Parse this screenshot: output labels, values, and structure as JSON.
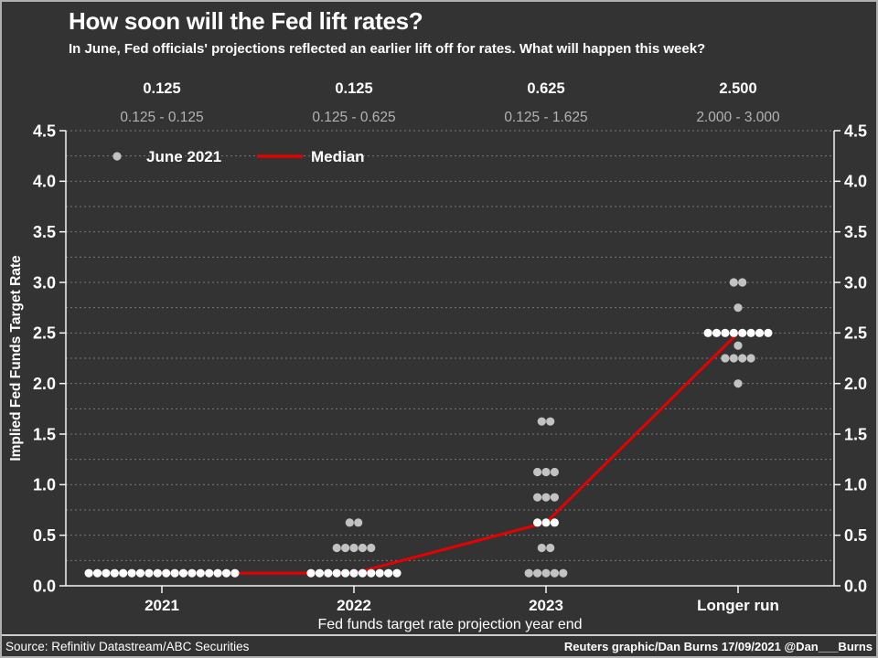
{
  "header": {
    "title": "How soon will the Fed lift rates?",
    "subtitle": "In June, Fed officials' projections reflected an earlier lift off for rates. What will happen this week?"
  },
  "footer": {
    "source": "Source: Refinitiv Datastream/ABC Securities",
    "credit": "Reuters graphic/Dan Burns 17/09/2021 @Dan___Burns"
  },
  "colors": {
    "background": "#333333",
    "border": "#b0b0b0",
    "text": "#ffffff",
    "muted_text": "#b3b3b3",
    "grid": "#8f8f8f",
    "axis": "#f5f5f5",
    "dot": "#c2c2c2",
    "dot_median": "#ffffff",
    "median_line": "#e80000"
  },
  "chart_data": {
    "type": "scatter",
    "title": "How soon will the Fed lift rates?",
    "xlabel": "Fed funds target rate projection year end",
    "ylabel": "Implied Fed Funds Target Rate",
    "ylim": [
      0,
      4.5
    ],
    "ytick_step": 0.5,
    "grid_step": 0.25,
    "grid": true,
    "categories": [
      "2021",
      "2022",
      "2023",
      "Longer run"
    ],
    "legend": [
      {
        "marker": "dot",
        "label": "June 2021"
      },
      {
        "marker": "line",
        "label": "Median"
      }
    ],
    "series": [
      {
        "name": "June 2021",
        "type": "dot-distribution",
        "points_by_category": [
          [
            {
              "rate": 0.125,
              "count": 18
            }
          ],
          [
            {
              "rate": 0.125,
              "count": 11
            },
            {
              "rate": 0.375,
              "count": 5
            },
            {
              "rate": 0.625,
              "count": 2
            }
          ],
          [
            {
              "rate": 0.125,
              "count": 5
            },
            {
              "rate": 0.375,
              "count": 2
            },
            {
              "rate": 0.625,
              "count": 3
            },
            {
              "rate": 0.875,
              "count": 3
            },
            {
              "rate": 1.125,
              "count": 3
            },
            {
              "rate": 1.625,
              "count": 2
            }
          ],
          [
            {
              "rate": 2.0,
              "count": 1
            },
            {
              "rate": 2.25,
              "count": 4
            },
            {
              "rate": 2.375,
              "count": 1
            },
            {
              "rate": 2.5,
              "count": 8
            },
            {
              "rate": 2.75,
              "count": 1
            },
            {
              "rate": 3.0,
              "count": 2
            }
          ]
        ]
      },
      {
        "name": "Median",
        "type": "line",
        "values": [
          0.125,
          0.125,
          0.625,
          2.5
        ]
      }
    ],
    "column_annotations": {
      "medians": [
        "0.125",
        "0.125",
        "0.625",
        "2.500"
      ],
      "ranges": [
        "0.125 - 0.125",
        "0.125 - 0.625",
        "0.125 - 1.625",
        "2.000 - 3.000"
      ]
    }
  }
}
